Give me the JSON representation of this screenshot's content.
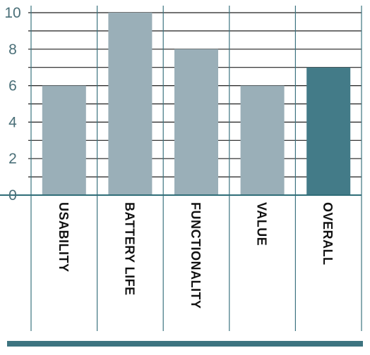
{
  "chart_data": {
    "type": "bar",
    "title": "",
    "xlabel": "",
    "ylabel": "",
    "categories": [
      "USABILITY",
      "BATTERY LIFE",
      "FUNCTIONALITY",
      "VALUE",
      "OVERALL"
    ],
    "values": [
      6,
      10,
      8,
      6,
      7
    ],
    "ylim": [
      0,
      10
    ],
    "yticks": [
      "0",
      "2",
      "4",
      "6",
      "8",
      "10"
    ],
    "grid": true,
    "legend": "none",
    "colors": {
      "bar": "#9aafb8",
      "highlight_bar": "#437b88",
      "grid_line": "#1f1f1f",
      "column_divider": "#3d7480",
      "baseline": "#2f6d78",
      "bottom_rule": "#3d7480",
      "tick_label": "#4a6f78",
      "category_label": "#111111"
    },
    "highlight_category": "OVERALL"
  }
}
